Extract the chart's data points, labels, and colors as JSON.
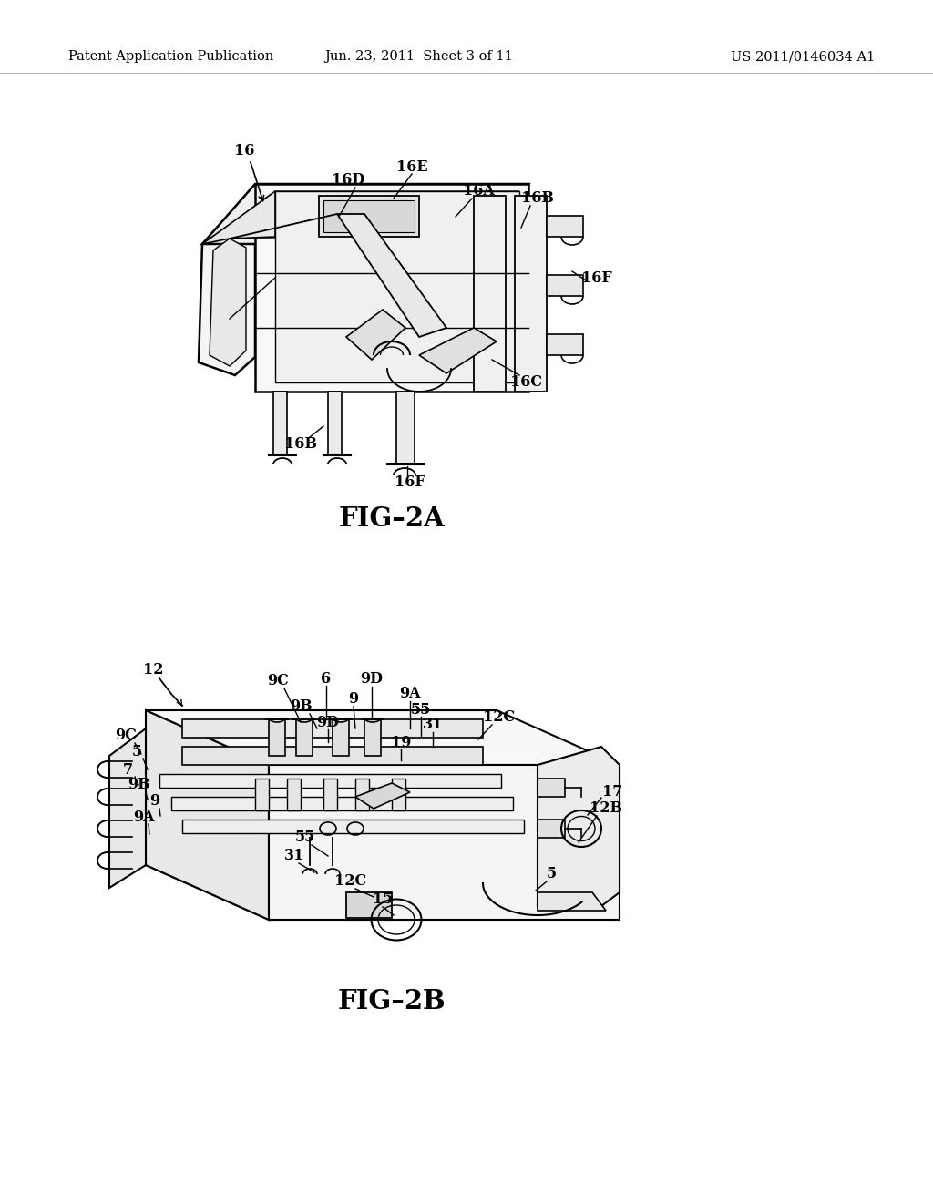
{
  "background_color": "#ffffff",
  "header_left": "Patent Application Publication",
  "header_center": "Jun. 23, 2011  Sheet 3 of 11",
  "header_right": "US 2011/0146034 A1",
  "fig2a_label": "FIG–2A",
  "fig2b_label": "FIG–2B",
  "line_color": "#000000",
  "annotation_fontsize": 11.5,
  "header_fontsize": 10.5,
  "figlabel_fontsize": 21
}
